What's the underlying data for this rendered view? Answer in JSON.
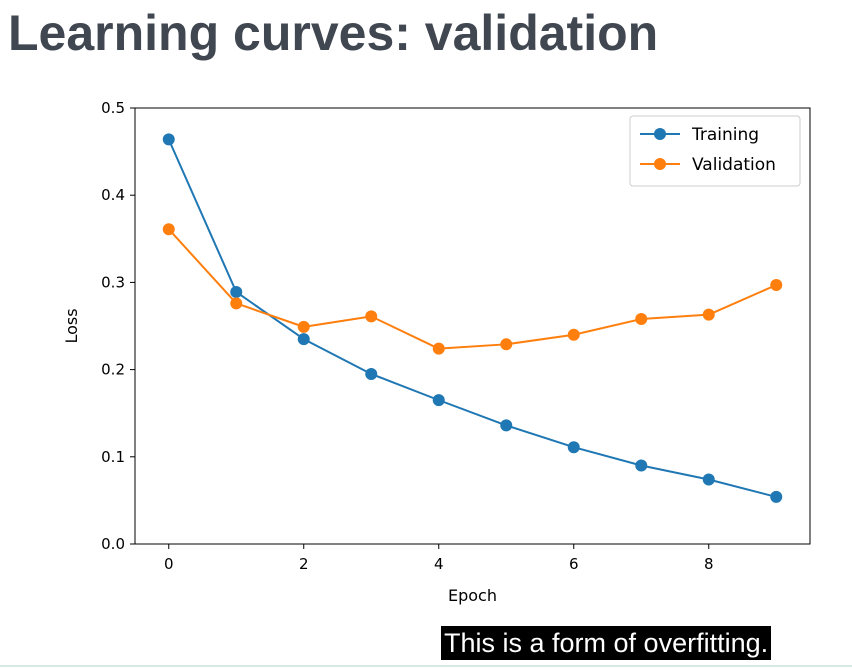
{
  "slide": {
    "title": "Learning curves: validation",
    "caption": "This is a form of overfitting."
  },
  "chart_data": {
    "type": "line",
    "xlabel": "Epoch",
    "ylabel": "Loss",
    "xlim": [
      -0.5,
      9.5
    ],
    "ylim": [
      0.0,
      0.5
    ],
    "xticks": [
      0,
      2,
      4,
      6,
      8
    ],
    "yticks": [
      0.0,
      0.1,
      0.2,
      0.3,
      0.4,
      0.5
    ],
    "grid": false,
    "legend_position": "top-right",
    "markers": "circle",
    "x": [
      0,
      1,
      2,
      3,
      4,
      5,
      6,
      7,
      8,
      9
    ],
    "series": [
      {
        "name": "Training",
        "color": "#1f77b4",
        "values": [
          0.464,
          0.289,
          0.235,
          0.195,
          0.165,
          0.136,
          0.111,
          0.09,
          0.074,
          0.054
        ]
      },
      {
        "name": "Validation",
        "color": "#ff7f0e",
        "values": [
          0.361,
          0.276,
          0.249,
          0.261,
          0.224,
          0.229,
          0.24,
          0.258,
          0.263,
          0.297
        ]
      }
    ]
  }
}
